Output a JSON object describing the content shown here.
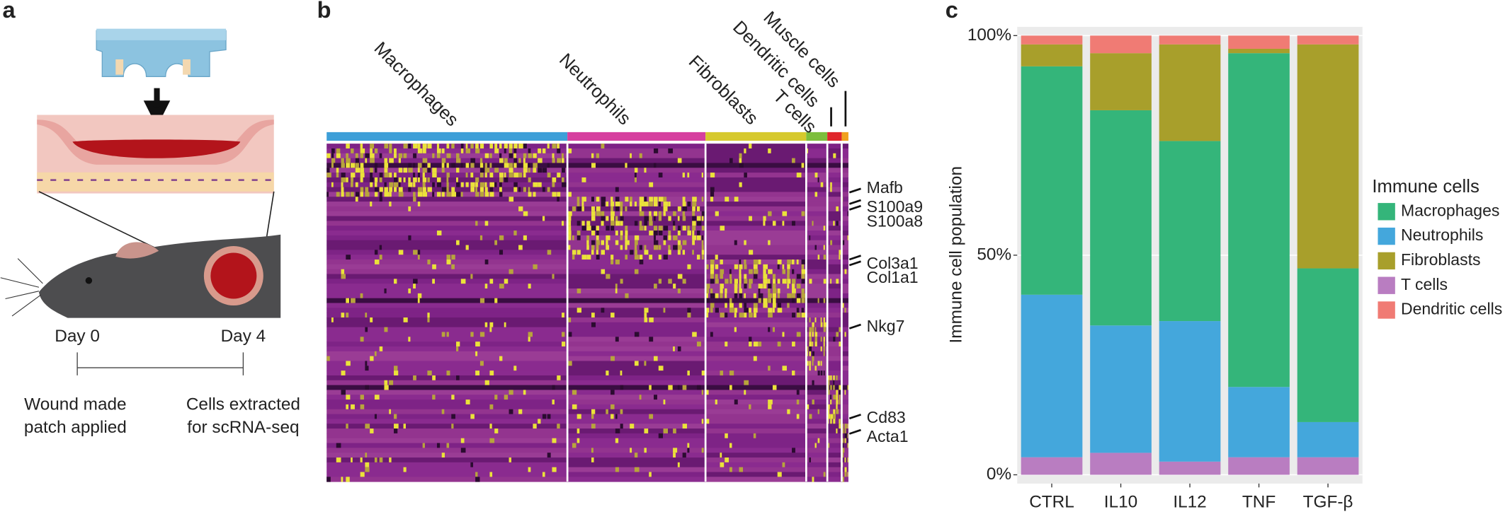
{
  "panel_a": {
    "label": "a",
    "timeline": [
      {
        "day": "Day 0",
        "event": [
          "Wound made",
          "patch applied"
        ]
      },
      {
        "day": "Day 4",
        "event": [
          "Cells extracted",
          "for scRNA-seq"
        ]
      }
    ]
  },
  "panel_b": {
    "label": "b",
    "clusters": [
      "Macrophages",
      "Neutrophils",
      "Fibroblasts",
      "T cells",
      "Dendritic cells",
      "Muscle cells"
    ],
    "cluster_colors": [
      "#3d9fd8",
      "#d63f9f",
      "#d6c92d",
      "#7dbe3c",
      "#e0262b",
      "#f0a11e"
    ],
    "genes": [
      "Mafb",
      "S100a9",
      "S100a8",
      "Col3a1",
      "Col1a1",
      "Nkg7",
      "Cd83",
      "Acta1"
    ]
  },
  "chart_data": {
    "type": "stacked_bar",
    "panel_label": "c",
    "y_label": "Immune cell population",
    "legend_title": "Immune cells",
    "categories": [
      "CTRL",
      "IL10",
      "IL12",
      "TNF",
      "TGF-β"
    ],
    "series": [
      {
        "name": "Macrophages",
        "color": "#34b57a",
        "values": [
          52,
          49,
          41,
          76,
          35
        ]
      },
      {
        "name": "Neutrophils",
        "color": "#44a7dc",
        "values": [
          37,
          29,
          32,
          16,
          8
        ]
      },
      {
        "name": "Fibroblasts",
        "color": "#a89f2b",
        "values": [
          5,
          13,
          22,
          1,
          51
        ]
      },
      {
        "name": "T cells",
        "color": "#b97dc1",
        "values": [
          4,
          5,
          3,
          4,
          4
        ]
      },
      {
        "name": "Dendritic cells",
        "color": "#f07b74",
        "values": [
          2,
          4,
          2,
          3,
          2
        ]
      }
    ],
    "ylim": [
      -2,
      102
    ],
    "yticks": [
      {
        "value": 0,
        "label": "0%"
      },
      {
        "value": 50,
        "label": "50%"
      },
      {
        "value": 100,
        "label": "100%"
      }
    ],
    "grid": true,
    "legend": "right"
  }
}
